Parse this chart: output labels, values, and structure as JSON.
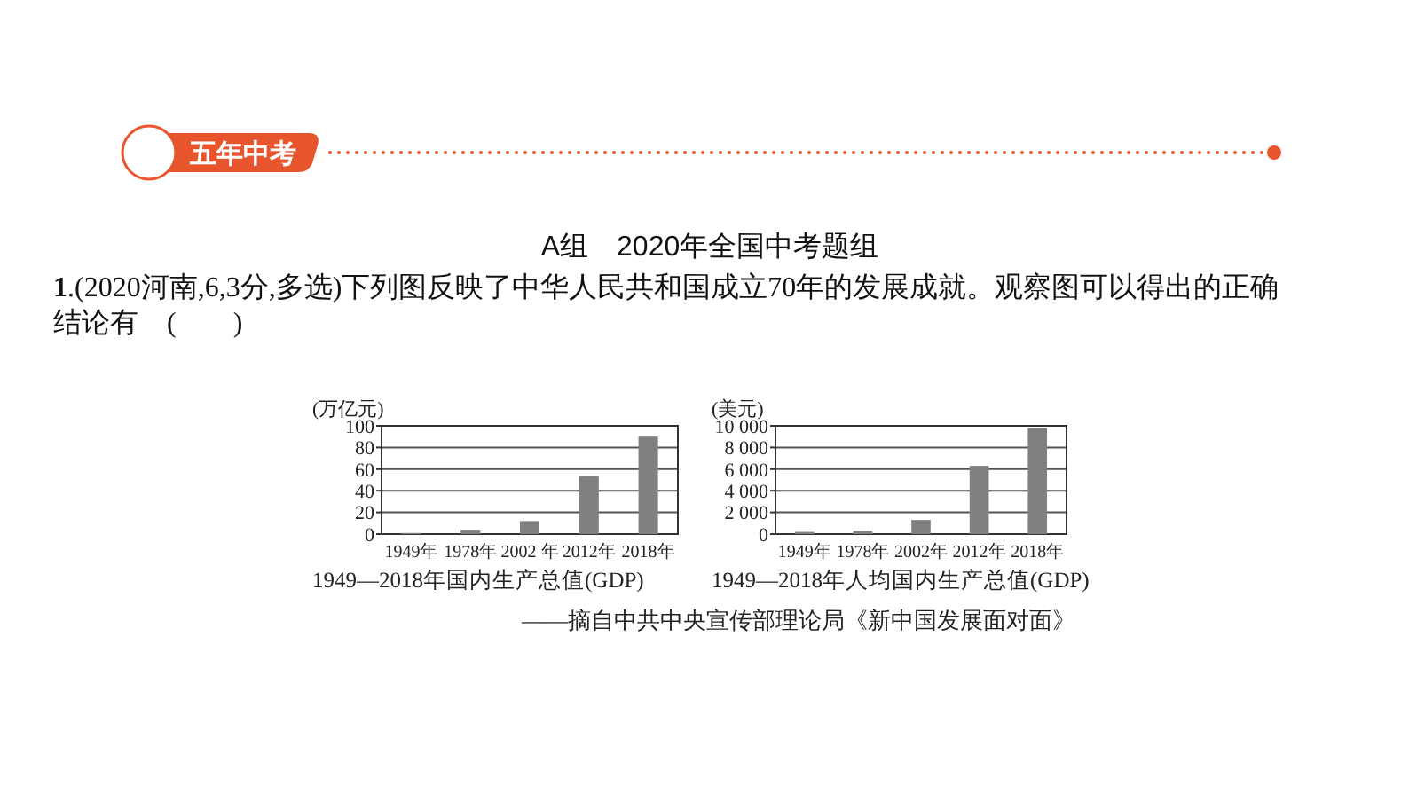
{
  "chart_data": [
    {
      "type": "bar",
      "title": "1949—2018年国内生产总值(GDP)",
      "ylabel": "(万亿元)",
      "categories": [
        "1949年",
        "1978年",
        "2002 年",
        "2012年",
        "2018年"
      ],
      "values": [
        1,
        4,
        12,
        54,
        90
      ],
      "color": "#808080",
      "ylim": [
        0,
        100
      ],
      "yticks": [
        0,
        20,
        40,
        60,
        80,
        100
      ],
      "grid": "y",
      "annotations": [
        "五年中考",
        "A组　2020年全国中考题组",
        "1.(2020河南,6,3分,多选)下列图反映了中华人民共和国成立70年的发展成就。观察图可以得出的正确结论有　(　　)"
      ]
    },
    {
      "type": "bar",
      "title": "1949—2018年人均国内生产总值(GDP)",
      "ylabel": "(美元)",
      "categories": [
        "1949年",
        "1978年",
        "2002年",
        "2012年",
        "2018年"
      ],
      "values": [
        200,
        300,
        1300,
        6300,
        9800
      ],
      "color": "#808080",
      "ylim": [
        0,
        10000
      ],
      "yticks": [
        0,
        {
          "value": 2000,
          "label": "2 000"
        },
        {
          "value": 4000,
          "label": "4 000"
        },
        {
          "value": 6000,
          "label": "6 000"
        },
        {
          "value": 8000,
          "label": "8 000"
        },
        {
          "value": 10000,
          "label": "10 000"
        }
      ],
      "grid": "y",
      "annotations": [
        "——摘自中共中央宣传部理论局《新中国发展面对面》"
      ]
    }
  ]
}
